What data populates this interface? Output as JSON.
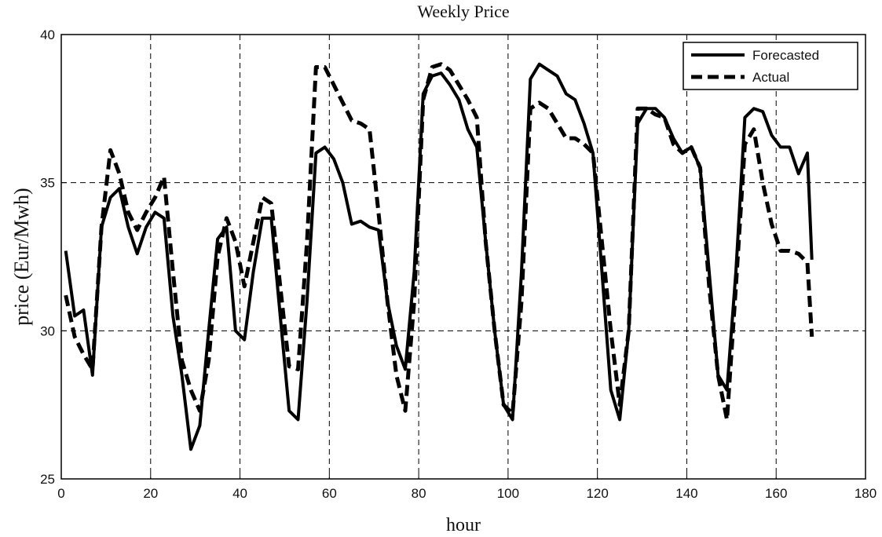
{
  "chart_data": {
    "type": "line",
    "title": "Weekly Price",
    "x_label": "hour",
    "y_label": "price (Eur/Mwh)",
    "x": [
      1,
      3,
      5,
      7,
      9,
      11,
      13,
      15,
      17,
      19,
      21,
      23,
      25,
      27,
      29,
      31,
      33,
      35,
      37,
      39,
      41,
      43,
      45,
      47,
      49,
      51,
      53,
      55,
      57,
      59,
      61,
      63,
      65,
      67,
      69,
      71,
      73,
      75,
      77,
      79,
      81,
      83,
      85,
      87,
      89,
      91,
      93,
      95,
      97,
      99,
      101,
      103,
      105,
      107,
      109,
      111,
      113,
      115,
      117,
      119,
      121,
      123,
      125,
      127,
      129,
      131,
      133,
      135,
      137,
      139,
      141,
      143,
      145,
      147,
      149,
      151,
      153,
      155,
      157,
      159,
      161,
      163,
      165,
      167,
      168
    ],
    "series": [
      {
        "name": "Forecasted",
        "color": "#000000",
        "linestyle": "solid",
        "values": [
          32.7,
          30.5,
          30.7,
          28.5,
          33.5,
          34.5,
          34.8,
          33.5,
          32.6,
          33.5,
          34.0,
          33.8,
          30.5,
          28.5,
          26.0,
          26.8,
          30,
          33.1,
          33.5,
          30,
          29.7,
          32,
          33.8,
          33.8,
          30.5,
          27.3,
          27.0,
          31,
          36,
          36.2,
          35.8,
          35,
          33.6,
          33.7,
          33.5,
          33.4,
          31,
          29.5,
          28.7,
          32,
          38,
          38.6,
          38.7,
          38.3,
          37.8,
          36.8,
          36.2,
          33,
          30,
          27.5,
          27.0,
          32,
          38.5,
          39.0,
          38.8,
          38.6,
          38,
          37.8,
          37,
          36,
          32,
          28,
          27,
          30,
          37,
          37.5,
          37.5,
          37.2,
          36.5,
          36,
          36.2,
          35.5,
          32,
          28.5,
          28,
          32,
          37.2,
          37.5,
          37.4,
          36.6,
          36.2,
          36.2,
          35.3,
          36,
          32.4
        ]
      },
      {
        "name": "Actual",
        "color": "#000000",
        "linestyle": "dashed",
        "values": [
          31.2,
          29.8,
          29.2,
          28.7,
          33.5,
          36.1,
          35.3,
          34,
          33.4,
          34,
          34.5,
          35.2,
          32,
          29,
          28,
          27.3,
          29,
          32.5,
          33.8,
          33,
          31.5,
          33,
          34.5,
          34.3,
          31.5,
          28.8,
          28.7,
          33,
          38.9,
          38.9,
          38.3,
          37.7,
          37.1,
          37,
          36.8,
          34,
          31,
          28.5,
          27.3,
          31,
          37.8,
          38.9,
          39,
          38.8,
          38.3,
          37.8,
          37.2,
          33,
          30,
          27.5,
          27.2,
          31,
          37.5,
          37.7,
          37.5,
          37,
          36.5,
          36.5,
          36.3,
          36,
          33,
          30,
          27.5,
          30,
          37.5,
          37.5,
          37.3,
          37.2,
          36.3,
          36,
          36.2,
          35.5,
          31.5,
          28.5,
          27.0,
          31.5,
          36.3,
          36.8,
          35,
          33.6,
          32.7,
          32.7,
          32.6,
          32.3,
          29.8
        ]
      }
    ],
    "xlim": [
      0,
      180
    ],
    "xticks": [
      0,
      20,
      40,
      60,
      80,
      100,
      120,
      140,
      160,
      180
    ],
    "ylim": [
      25,
      40
    ],
    "yticks": [
      25,
      30,
      35,
      40
    ],
    "grid": true,
    "legend": "upper right"
  }
}
